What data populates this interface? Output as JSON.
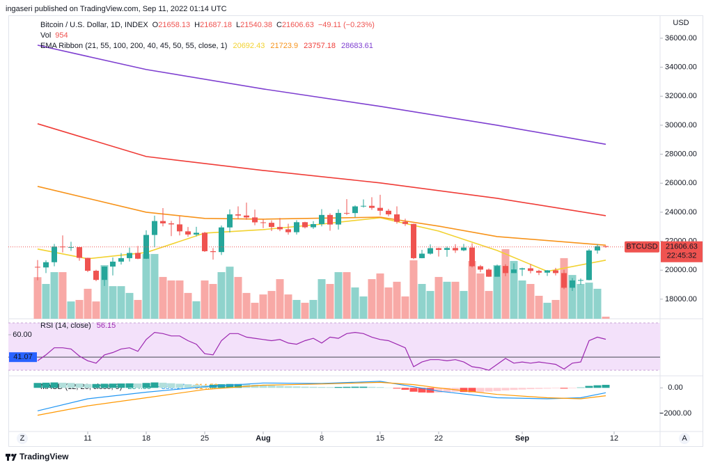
{
  "header": "ingaseri published on TradingView.com, Sep 11, 2022 01:14 UTC",
  "footer": "TradingView",
  "buttons": [
    "Z",
    "A"
  ],
  "chart_data": [
    {
      "type": "candlestick",
      "title": "Bitcoin / U.S. Dollar, 1D, INDEX",
      "ohlc_labels": [
        "O",
        "H",
        "L",
        "C"
      ],
      "change_label": "−49.11 (−0.23%)",
      "axis_label": "USD",
      "dates": [
        "2022-07-05",
        "2022-07-06",
        "2022-07-07",
        "2022-07-08",
        "2022-07-09",
        "2022-07-10",
        "2022-07-11",
        "2022-07-12",
        "2022-07-13",
        "2022-07-14",
        "2022-07-15",
        "2022-07-16",
        "2022-07-17",
        "2022-07-18",
        "2022-07-19",
        "2022-07-20",
        "2022-07-21",
        "2022-07-22",
        "2022-07-23",
        "2022-07-24",
        "2022-07-25",
        "2022-07-26",
        "2022-07-27",
        "2022-07-28",
        "2022-07-29",
        "2022-07-30",
        "2022-07-31",
        "2022-08-01",
        "2022-08-02",
        "2022-08-03",
        "2022-08-04",
        "2022-08-05",
        "2022-08-06",
        "2022-08-07",
        "2022-08-08",
        "2022-08-09",
        "2022-08-10",
        "2022-08-11",
        "2022-08-12",
        "2022-08-13",
        "2022-08-14",
        "2022-08-15",
        "2022-08-16",
        "2022-08-17",
        "2022-08-18",
        "2022-08-19",
        "2022-08-20",
        "2022-08-21",
        "2022-08-22",
        "2022-08-23",
        "2022-08-24",
        "2022-08-25",
        "2022-08-26",
        "2022-08-27",
        "2022-08-28",
        "2022-08-29",
        "2022-08-30",
        "2022-08-31",
        "2022-09-01",
        "2022-09-02",
        "2022-09-03",
        "2022-09-04",
        "2022-09-05",
        "2022-09-06",
        "2022-09-07",
        "2022-09-08",
        "2022-09-09",
        "2022-09-10",
        "2022-09-11"
      ],
      "open": [
        20230,
        20190,
        20550,
        21630,
        21590,
        21590,
        20850,
        19960,
        19330,
        20250,
        20590,
        20830,
        21190,
        20790,
        22430,
        23390,
        23230,
        23160,
        22680,
        22460,
        22580,
        21310,
        21250,
        22950,
        23850,
        23770,
        23640,
        23300,
        23270,
        22980,
        22820,
        22620,
        23310,
        22960,
        23180,
        23810,
        23150,
        23950,
        23940,
        24400,
        24440,
        24300,
        24100,
        23850,
        23340,
        23190,
        20830,
        21140,
        21520,
        21400,
        21530,
        21370,
        21560,
        20270,
        20040,
        19550,
        20290,
        19800,
        20050,
        20130,
        19950,
        19830,
        19990,
        19800,
        18790,
        19290,
        19320,
        21360,
        21658.13
      ],
      "high": [
        20700,
        20680,
        21810,
        22400,
        21960,
        21600,
        20860,
        20030,
        20260,
        20880,
        21180,
        21560,
        21670,
        22750,
        23760,
        24280,
        23400,
        23730,
        22980,
        22990,
        22640,
        21520,
        23080,
        24190,
        24400,
        24660,
        24180,
        23500,
        23440,
        23600,
        23200,
        23450,
        23340,
        23380,
        24210,
        23920,
        24200,
        24900,
        24470,
        24880,
        25030,
        25200,
        24230,
        24400,
        23550,
        23210,
        21400,
        21780,
        21550,
        21640,
        21790,
        21810,
        21860,
        20360,
        20120,
        20390,
        20410,
        20470,
        20170,
        20420,
        20030,
        20010,
        20160,
        20030,
        19450,
        19430,
        21460,
        21790,
        21687.18
      ],
      "low": [
        19300,
        19800,
        20270,
        21220,
        21330,
        20650,
        19870,
        19240,
        18910,
        19640,
        20390,
        20600,
        20760,
        20770,
        21580,
        23020,
        22350,
        22400,
        22310,
        22330,
        21260,
        20730,
        21050,
        22600,
        23530,
        23480,
        23100,
        22900,
        22700,
        22690,
        22450,
        22460,
        22880,
        22850,
        23020,
        22720,
        22800,
        23800,
        23650,
        24320,
        24160,
        23780,
        23720,
        23210,
        23050,
        20760,
        20820,
        21080,
        20940,
        20930,
        21190,
        21310,
        20190,
        19860,
        19540,
        19550,
        19590,
        19800,
        19600,
        19780,
        19660,
        19600,
        19640,
        18690,
        18570,
        19000,
        19300,
        21140,
        21540.38
      ],
      "close": [
        20190,
        20550,
        21630,
        21590,
        21590,
        20850,
        19960,
        19330,
        20250,
        20590,
        20830,
        21190,
        20790,
        22430,
        23390,
        23230,
        23160,
        22680,
        22460,
        22580,
        21310,
        21250,
        22950,
        23850,
        23770,
        23640,
        23300,
        23270,
        22980,
        22820,
        22620,
        23310,
        22960,
        23180,
        23810,
        23150,
        23950,
        23940,
        24400,
        24440,
        24300,
        24100,
        23850,
        23340,
        23190,
        20830,
        21140,
        21520,
        21400,
        21530,
        21370,
        21560,
        20270,
        20040,
        19550,
        20290,
        19800,
        20050,
        20130,
        19950,
        19830,
        19990,
        19800,
        18790,
        19290,
        19320,
        21360,
        21655.74,
        21606.63
      ],
      "up_color": "#26a69a",
      "down_color": "#ef5350",
      "volume": {
        "name": "Vol",
        "up_color": "#8fd3cc",
        "down_color": "#f8a9a6",
        "ylim": [
          0,
          138650
        ],
        "values": [
          19000,
          15900,
          21300,
          21300,
          7900,
          8600,
          13700,
          7900,
          24500,
          14900,
          14900,
          11800,
          8600,
          29600,
          29600,
          19100,
          17500,
          17500,
          11800,
          8000,
          17500,
          15900,
          21300,
          23800,
          19100,
          11800,
          7300,
          11100,
          12700,
          18100,
          11100,
          8600,
          7300,
          8600,
          18100,
          15900,
          21300,
          21300,
          14300,
          10200,
          18100,
          20700,
          14300,
          16900,
          10200,
          26700,
          15900,
          12700,
          19100,
          16900,
          16900,
          12700,
          26400,
          20700,
          12700,
          24500,
          31800,
          26400,
          17500,
          15900,
          10500,
          7300,
          8600,
          27700,
          20000,
          15900,
          16500,
          13700,
          954
        ]
      },
      "overlay": {
        "name": "EMA Ribbon (21, 55, 100, 200, 40, 45, 50, 55, close, 1)",
        "series": [
          {
            "color": "#f2d230",
            "x": [
              "2022-07-05",
              "2022-07-11",
              "2022-07-18",
              "2022-07-25",
              "2022-08-01",
              "2022-08-08",
              "2022-08-15",
              "2022-08-22",
              "2022-08-29",
              "2022-09-04",
              "2022-09-11"
            ],
            "values": [
              21460,
              20790,
              21220,
              22560,
              22800,
              23180,
              23620,
              22700,
              21360,
              19920,
              20692.43
            ]
          },
          {
            "color": "#f7931a",
            "x": [
              "2022-07-05",
              "2022-07-18",
              "2022-07-25",
              "2022-08-01",
              "2022-08-15",
              "2022-08-22",
              "2022-08-29",
              "2022-09-11"
            ],
            "values": [
              25780,
              24000,
              23570,
              23520,
              23660,
              23040,
              22320,
              21723.9
            ]
          },
          {
            "color": "#ef3b36",
            "x": [
              "2022-07-05",
              "2022-07-18",
              "2022-08-01",
              "2022-08-15",
              "2022-08-29",
              "2022-09-11"
            ],
            "values": [
              30100,
              27840,
              26880,
              26020,
              24960,
              23757.18
            ]
          },
          {
            "color": "#7e3fd0",
            "x": [
              "2022-07-05",
              "2022-07-18",
              "2022-08-01",
              "2022-08-15",
              "2022-08-29",
              "2022-09-11"
            ],
            "values": [
              35520,
              33840,
              32500,
              31300,
              30000,
              28683.61
            ]
          }
        ]
      },
      "price_label": {
        "symbol": "BTCUSD",
        "countdown": "22:45:32"
      },
      "xlim": [
        "2022-07-01T12:00",
        "2022-09-17T12:00"
      ],
      "xticks": [
        {
          "value": "2022-07-11",
          "label": "11"
        },
        {
          "value": "2022-07-18",
          "label": "18"
        },
        {
          "value": "2022-07-25",
          "label": "25"
        },
        {
          "value": "2022-08-01",
          "label": "Aug"
        },
        {
          "value": "2022-08-08",
          "label": "8"
        },
        {
          "value": "2022-08-15",
          "label": "15"
        },
        {
          "value": "2022-08-22",
          "label": "22"
        },
        {
          "value": "2022-09-01",
          "label": "Sep"
        },
        {
          "value": "2022-09-12",
          "label": "12"
        }
      ],
      "ylim": [
        16650,
        37580
      ],
      "yticks": [
        {
          "value": 36000,
          "label": "36000.00"
        },
        {
          "value": 34000,
          "label": "34000.00"
        },
        {
          "value": 32000,
          "label": "32000.00"
        },
        {
          "value": 30000,
          "label": "30000.00"
        },
        {
          "value": 28000,
          "label": "28000.00"
        },
        {
          "value": 26000,
          "label": "26000.00"
        },
        {
          "value": 24000,
          "label": "24000.00"
        },
        {
          "value": 22000,
          "label": "22000.00"
        },
        {
          "value": 20000,
          "label": "20000.00"
        },
        {
          "value": 18000,
          "label": "18000.00"
        }
      ]
    },
    {
      "type": "line",
      "title": "RSI (14, close)",
      "color": "#9c27b0",
      "band": [
        30,
        70
      ],
      "band_color": "#f3e1fa",
      "hline": 41.07,
      "hline_color": "#2962ff",
      "values": [
        38,
        43,
        49,
        49,
        48,
        42,
        38,
        36,
        43,
        45,
        48,
        49,
        46,
        56,
        62,
        61,
        59,
        59,
        55,
        52,
        44,
        43,
        55,
        61,
        61,
        58,
        57,
        56,
        55,
        56,
        53,
        52,
        55,
        57,
        53,
        58,
        57,
        61,
        62,
        61,
        58,
        56,
        55,
        52,
        49,
        33,
        37,
        39,
        39,
        38,
        39,
        37,
        33,
        32,
        30,
        35,
        40,
        36,
        37,
        36,
        37,
        36,
        35,
        31,
        36,
        37,
        55,
        58,
        56.15
      ],
      "ylim": [
        25.3,
        73.5
      ],
      "yticks": [
        {
          "value": 60,
          "label": "60.00"
        }
      ]
    },
    {
      "type": "macd",
      "title": "MACD (12, 26, close, 9)",
      "histogram": {
        "colors": [
          "#26a69a",
          "#b2dfdb",
          "#ff5252",
          "#ffcdd2"
        ],
        "values": [
          380,
          400,
          420,
          400,
          380,
          340,
          300,
          300,
          320,
          330,
          340,
          350,
          340,
          380,
          420,
          400,
          360,
          320,
          280,
          240,
          200,
          240,
          280,
          300,
          300,
          280,
          240,
          220,
          180,
          150,
          120,
          110,
          90,
          80,
          70,
          60,
          70,
          80,
          90,
          90,
          80,
          60,
          20,
          -60,
          -150,
          -300,
          -360,
          -380,
          -370,
          -340,
          -300,
          -320,
          -340,
          -330,
          -290,
          -250,
          -200,
          -160,
          -130,
          -100,
          -80,
          -60,
          -40,
          -60,
          -40,
          30,
          150,
          200,
          234.35
        ]
      },
      "series": [
        {
          "color": "#2196f3",
          "legend_value": "−380.17",
          "x": [
            "2022-07-05",
            "2022-07-11",
            "2022-07-18",
            "2022-07-25",
            "2022-08-01",
            "2022-08-08",
            "2022-08-15",
            "2022-08-19",
            "2022-08-22",
            "2022-08-29",
            "2022-09-04",
            "2022-09-08",
            "2022-09-11"
          ],
          "values": [
            -1790,
            -850,
            -340,
            85,
            380,
            340,
            510,
            85,
            -255,
            -770,
            -850,
            -770,
            -380.17
          ]
        },
        {
          "color": "#ff9800",
          "legend_value": "−614.52",
          "x": [
            "2022-07-05",
            "2022-07-11",
            "2022-07-18",
            "2022-07-25",
            "2022-08-01",
            "2022-08-08",
            "2022-08-15",
            "2022-08-19",
            "2022-08-22",
            "2022-08-29",
            "2022-09-04",
            "2022-09-08",
            "2022-09-11"
          ],
          "values": [
            -2130,
            -1400,
            -770,
            -130,
            210,
            300,
            425,
            255,
            0,
            -510,
            -770,
            -850,
            -614.52
          ]
        }
      ],
      "ylim": [
        -3400,
        936
      ],
      "yticks": [
        {
          "value": 0,
          "label": "0.00"
        },
        {
          "value": -2000,
          "label": "−2000.00"
        }
      ]
    }
  ]
}
